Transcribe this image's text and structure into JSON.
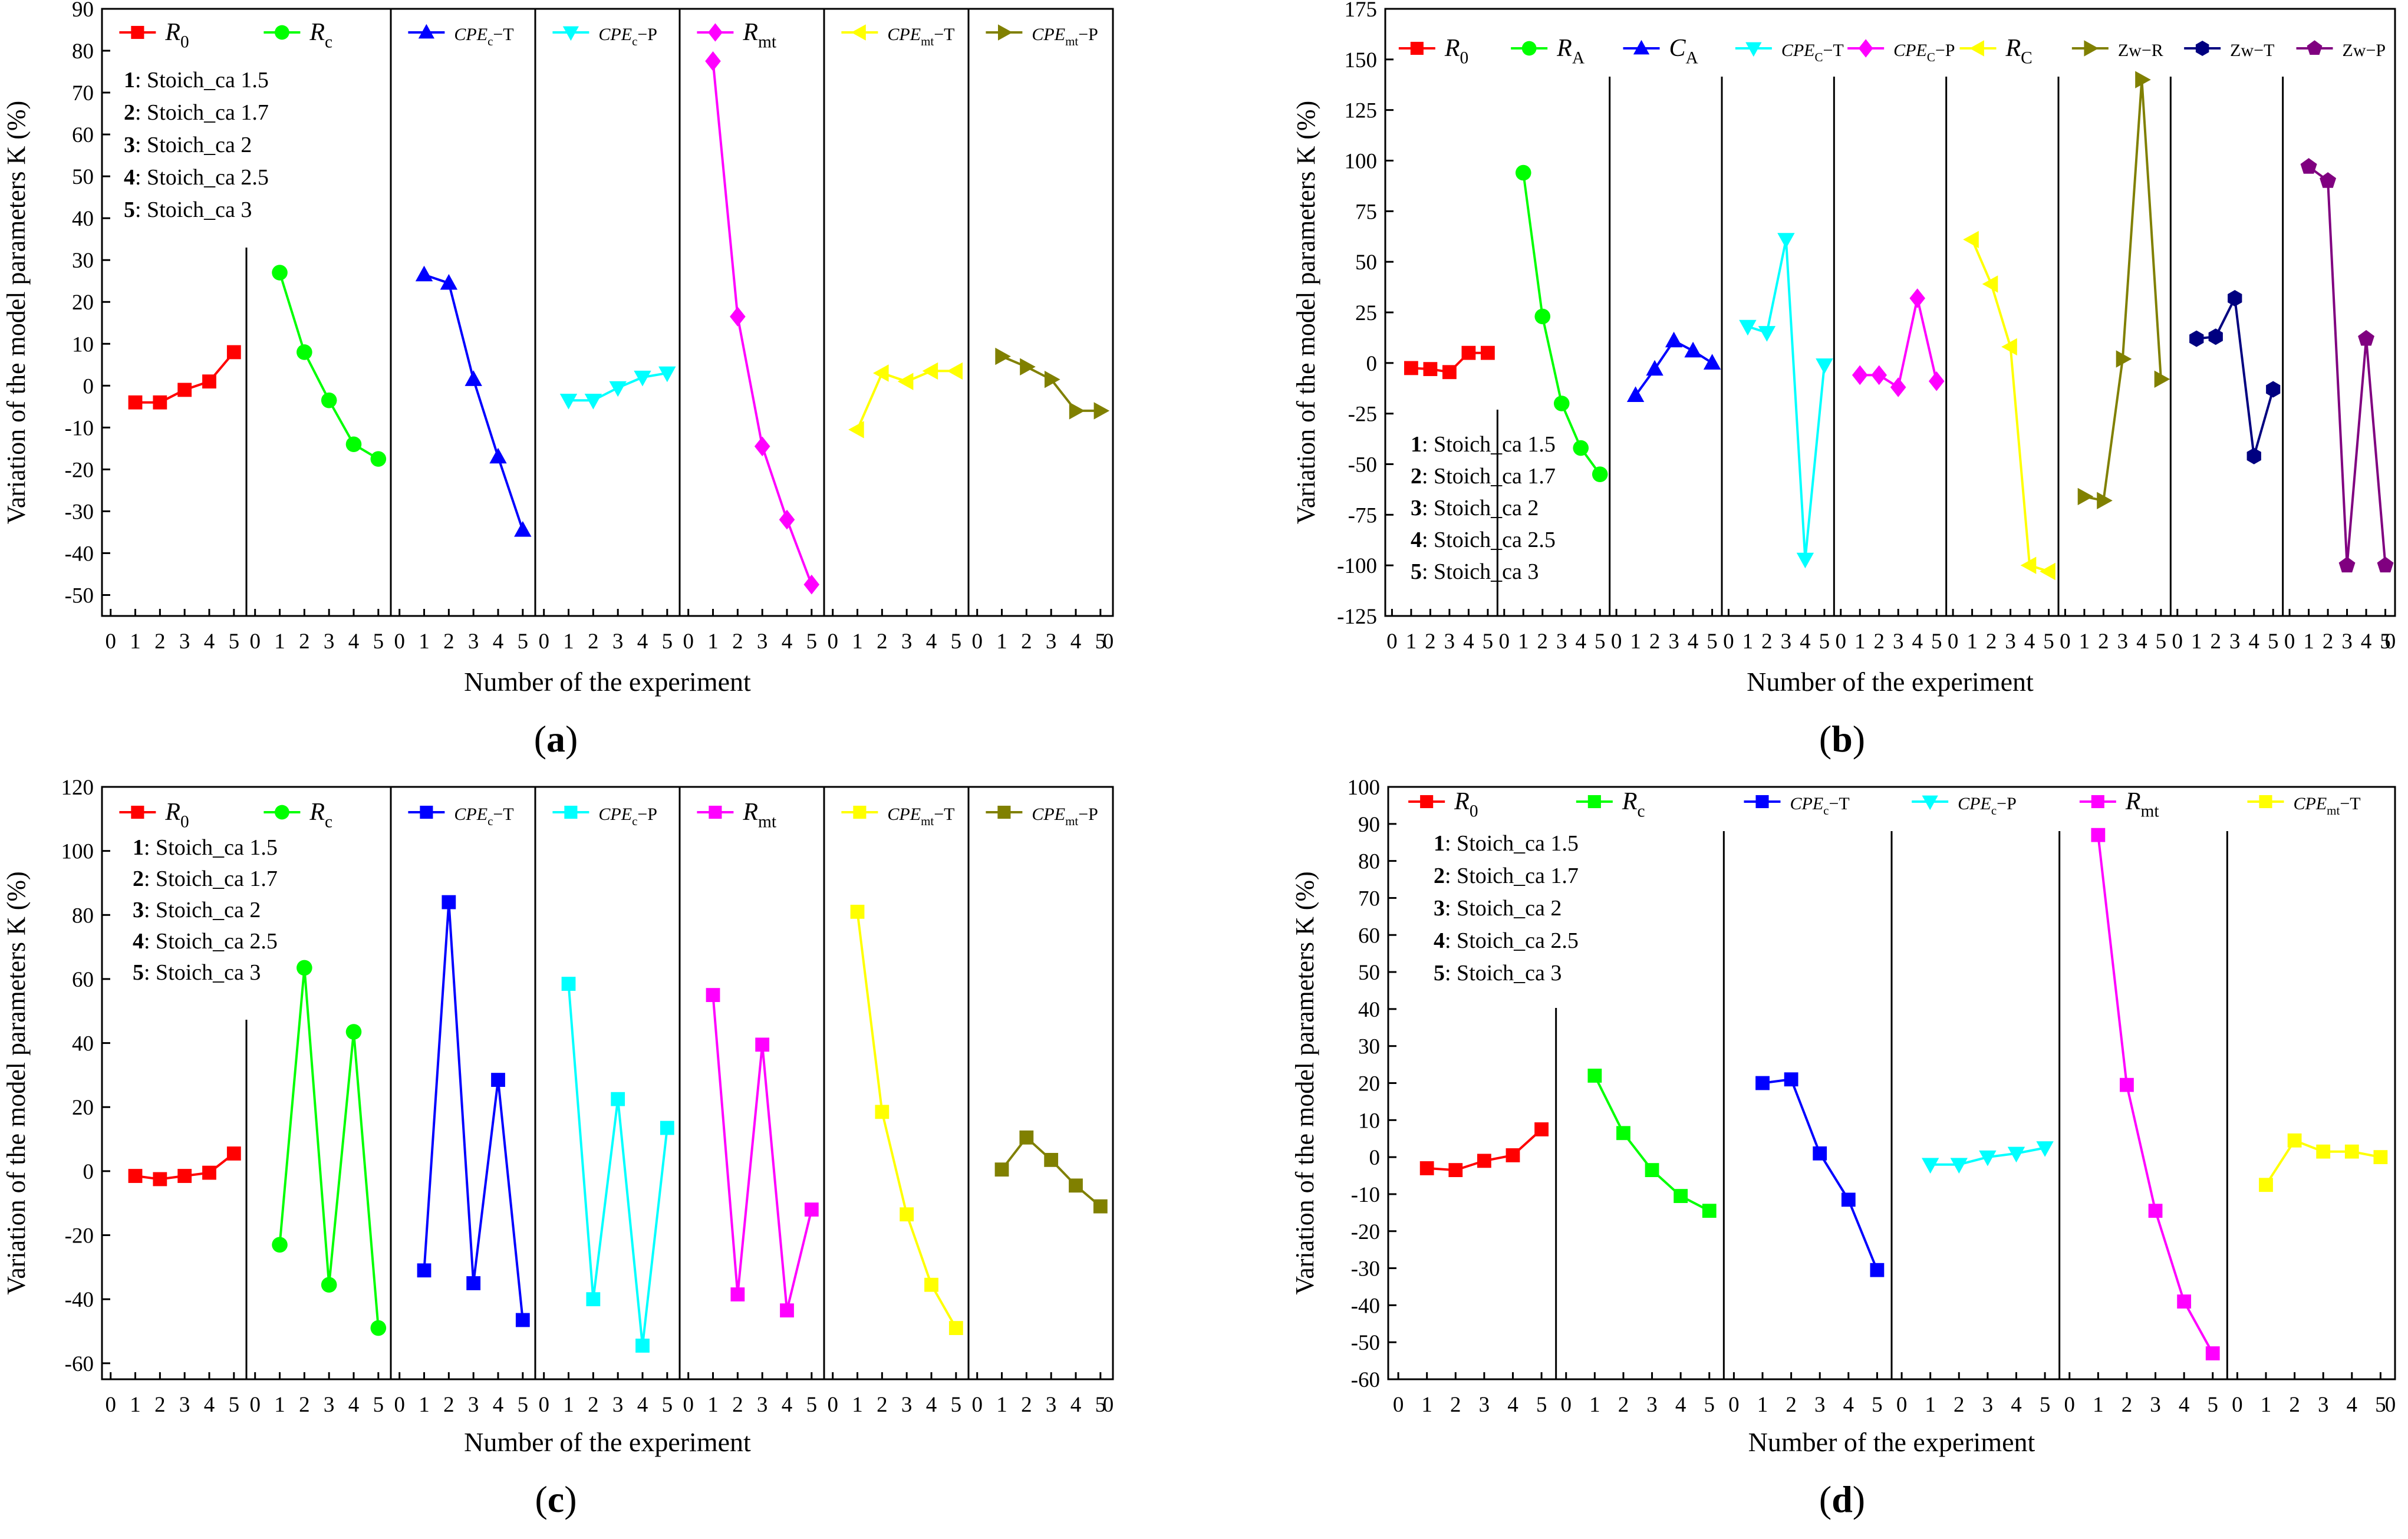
{
  "figure": {
    "stoich_list": [
      {
        "n": "1",
        "text": ": Stoich_ca 1.5"
      },
      {
        "n": "2",
        "text": ": Stoich_ca 1.7"
      },
      {
        "n": "3",
        "text": ": Stoich_ca 2"
      },
      {
        "n": "4",
        "text": ": Stoich_ca 2.5"
      },
      {
        "n": "5",
        "text": ": Stoich_ca 3"
      }
    ]
  },
  "chart_data": [
    {
      "type": "line",
      "label": "(a)",
      "panel_letter": "a",
      "ylabel": "Variation of the model parameters K (%)",
      "xlabel": "Number of the experiment",
      "ylim": [
        -55,
        90
      ],
      "yticks": [
        -50,
        -40,
        -30,
        -20,
        -10,
        0,
        10,
        20,
        30,
        40,
        50,
        60,
        70,
        80,
        90
      ],
      "x_per_segment": [
        0,
        1,
        2,
        3,
        4,
        5
      ],
      "series": [
        {
          "name": "R0",
          "label_main": "R",
          "label_sub": "0",
          "label_suffix": "",
          "color": "#ff0000",
          "marker": "square",
          "values": [
            -4,
            -4,
            -1,
            1,
            8
          ]
        },
        {
          "name": "Rc",
          "label_main": "R",
          "label_sub": "c",
          "label_suffix": "",
          "color": "#00ff00",
          "marker": "circle",
          "values": [
            27,
            8,
            -3.5,
            -14,
            -17.5
          ]
        },
        {
          "name": "CPEc-T",
          "label_main": "CPE",
          "label_sub": "c",
          "label_suffix": "−T",
          "color": "#0000ff",
          "marker": "triangle-up",
          "values": [
            26.5,
            24.5,
            1.5,
            -17,
            -34.5
          ]
        },
        {
          "name": "CPEc-P",
          "label_main": "CPE",
          "label_sub": "c",
          "label_suffix": "−P",
          "color": "#00ffff",
          "marker": "triangle-down",
          "values": [
            -3.5,
            -3.5,
            -0.5,
            2,
            3
          ]
        },
        {
          "name": "Rmt",
          "label_main": "R",
          "label_sub": "mt",
          "label_suffix": "",
          "color": "#ff00ff",
          "marker": "diamond",
          "values": [
            77.5,
            16.5,
            -14.5,
            -32,
            -47.5
          ]
        },
        {
          "name": "CPEmt-T",
          "label_main": "CPE",
          "label_sub": "mt",
          "label_suffix": "−T",
          "color": "#ffff00",
          "marker": "triangle-left",
          "values": [
            -10.5,
            3,
            1,
            3.5,
            3.5
          ]
        },
        {
          "name": "CPEmt-P",
          "label_main": "CPE",
          "label_sub": "mt",
          "label_suffix": "−P",
          "color": "#808000",
          "marker": "triangle-right",
          "values": [
            7,
            4.5,
            1.5,
            -6,
            -6
          ]
        }
      ]
    },
    {
      "type": "line",
      "label": "(b)",
      "panel_letter": "b",
      "ylabel": "Variation of the model parameters K (%)",
      "xlabel": "Number of the experiment",
      "ylim": [
        -125,
        175
      ],
      "yticks": [
        -125,
        -100,
        -75,
        -50,
        -25,
        0,
        25,
        50,
        75,
        100,
        125,
        150,
        175
      ],
      "x_per_segment": [
        0,
        1,
        2,
        3,
        4,
        5
      ],
      "series": [
        {
          "name": "R0",
          "label_main": "R",
          "label_sub": "0",
          "label_suffix": "",
          "color": "#ff0000",
          "marker": "square",
          "values": [
            -2.5,
            -3,
            -4.5,
            5,
            5
          ]
        },
        {
          "name": "RA",
          "label_main": "R",
          "label_sub": "A",
          "label_suffix": "",
          "color": "#00ff00",
          "marker": "circle",
          "values": [
            94,
            23,
            -20,
            -42,
            -55
          ]
        },
        {
          "name": "CA",
          "label_main": "C",
          "label_sub": "A",
          "label_suffix": "",
          "color": "#0000ff",
          "marker": "triangle-up",
          "values": [
            -16,
            -3,
            11,
            6,
            0
          ]
        },
        {
          "name": "CPEC-T",
          "label_main": "CPE",
          "label_sub": "C",
          "label_suffix": "−T",
          "color": "#00ffff",
          "marker": "triangle-down",
          "values": [
            18,
            15,
            61,
            -97,
            -1
          ]
        },
        {
          "name": "CPEC-P",
          "label_main": "CPE",
          "label_sub": "C",
          "label_suffix": "−P",
          "color": "#ff00ff",
          "marker": "diamond",
          "values": [
            -6,
            -6,
            -12,
            32,
            -9
          ]
        },
        {
          "name": "RC",
          "label_main": "R",
          "label_sub": "C",
          "label_suffix": "",
          "color": "#ffff00",
          "marker": "triangle-left",
          "values": [
            61,
            39,
            8,
            -100,
            -103
          ]
        },
        {
          "name": "Zw-R",
          "label_main": "Zw−R",
          "label_sub": "",
          "label_suffix": "",
          "color": "#808000",
          "marker": "triangle-right",
          "values": [
            -66,
            -68,
            2,
            140,
            -8
          ]
        },
        {
          "name": "Zw-T",
          "label_main": "Zw−T",
          "label_sub": "",
          "label_suffix": "",
          "color": "#000080",
          "marker": "hexagon",
          "values": [
            12,
            13,
            32,
            -46,
            -13
          ]
        },
        {
          "name": "Zw-P",
          "label_main": "Zw−P",
          "label_sub": "",
          "label_suffix": "",
          "color": "#800080",
          "marker": "pentagon",
          "values": [
            97,
            90,
            -100,
            12,
            -100
          ]
        }
      ]
    },
    {
      "type": "line",
      "label": "(c)",
      "panel_letter": "c",
      "ylabel": "Variation of the model parameters K (%)",
      "xlabel": "Number of the experiment",
      "ylim": [
        -65,
        120
      ],
      "yticks": [
        -60,
        -40,
        -20,
        0,
        20,
        40,
        60,
        80,
        100,
        120
      ],
      "x_per_segment": [
        0,
        1,
        2,
        3,
        4,
        5
      ],
      "series": [
        {
          "name": "R0",
          "label_main": "R",
          "label_sub": "0",
          "label_suffix": "",
          "color": "#ff0000",
          "marker": "square",
          "values": [
            -1.5,
            -2.5,
            -1.5,
            -0.5,
            5.5
          ]
        },
        {
          "name": "Rc",
          "label_main": "R",
          "label_sub": "c",
          "label_suffix": "",
          "color": "#00ff00",
          "marker": "circle",
          "values": [
            -23,
            63.5,
            -35.5,
            43.5,
            -49
          ]
        },
        {
          "name": "CPEc-T",
          "label_main": "CPE",
          "label_sub": "c",
          "label_suffix": "−T",
          "color": "#0000ff",
          "marker": "square",
          "values": [
            -31,
            84,
            -35,
            28.5,
            -46.5
          ]
        },
        {
          "name": "CPEc-P",
          "label_main": "CPE",
          "label_sub": "c",
          "label_suffix": "−P",
          "color": "#00ffff",
          "marker": "square",
          "values": [
            58.5,
            -40,
            22.5,
            -54.5,
            13.5
          ]
        },
        {
          "name": "Rmt",
          "label_main": "R",
          "label_sub": "mt",
          "label_suffix": "",
          "color": "#ff00ff",
          "marker": "square",
          "values": [
            55,
            -38.5,
            39.5,
            -43.5,
            -12
          ]
        },
        {
          "name": "CPEmt-T",
          "label_main": "CPE",
          "label_sub": "mt",
          "label_suffix": "−T",
          "color": "#ffff00",
          "marker": "square",
          "values": [
            81,
            18.5,
            -13.5,
            -35.5,
            -49
          ]
        },
        {
          "name": "CPEmt-P",
          "label_main": "CPE",
          "label_sub": "mt",
          "label_suffix": "−P",
          "color": "#808000",
          "marker": "square",
          "values": [
            0.5,
            10.5,
            3.5,
            -4.5,
            -11
          ]
        }
      ]
    },
    {
      "type": "line",
      "label": "(d)",
      "panel_letter": "d",
      "ylabel": "Variation of the model parameters K (%)",
      "xlabel": "Number of the experiment",
      "ylim": [
        -60,
        100
      ],
      "yticks": [
        -60,
        -50,
        -40,
        -30,
        -20,
        -10,
        0,
        10,
        20,
        30,
        40,
        50,
        60,
        70,
        80,
        90,
        100
      ],
      "x_per_segment": [
        0,
        1,
        2,
        3,
        4,
        5
      ],
      "series": [
        {
          "name": "R0",
          "label_main": "R",
          "label_sub": "0",
          "label_suffix": "",
          "color": "#ff0000",
          "marker": "square",
          "values": [
            -3,
            -3.5,
            -1,
            0.5,
            7.5
          ]
        },
        {
          "name": "Rc",
          "label_main": "R",
          "label_sub": "c",
          "label_suffix": "",
          "color": "#00ff00",
          "marker": "square",
          "values": [
            22,
            6.5,
            -3.5,
            -10.5,
            -14.5
          ]
        },
        {
          "name": "CPEc-T",
          "label_main": "CPE",
          "label_sub": "c",
          "label_suffix": "−T",
          "color": "#0000ff",
          "marker": "square",
          "values": [
            20,
            21,
            1,
            -11.5,
            -30.5
          ]
        },
        {
          "name": "CPEc-P",
          "label_main": "CPE",
          "label_sub": "c",
          "label_suffix": "−P",
          "color": "#00ffff",
          "marker": "triangle-down",
          "values": [
            -2,
            -2,
            0,
            1,
            2.5
          ]
        },
        {
          "name": "Rmt",
          "label_main": "R",
          "label_sub": "mt",
          "label_suffix": "",
          "color": "#ff00ff",
          "marker": "square",
          "values": [
            87,
            19.5,
            -14.5,
            -39,
            -53
          ]
        },
        {
          "name": "CPEmt-T",
          "label_main": "CPE",
          "label_sub": "mt",
          "label_suffix": "−T",
          "color": "#ffff00",
          "marker": "square",
          "values": [
            -7.5,
            4.5,
            1.5,
            1.5,
            0
          ]
        }
      ]
    }
  ]
}
